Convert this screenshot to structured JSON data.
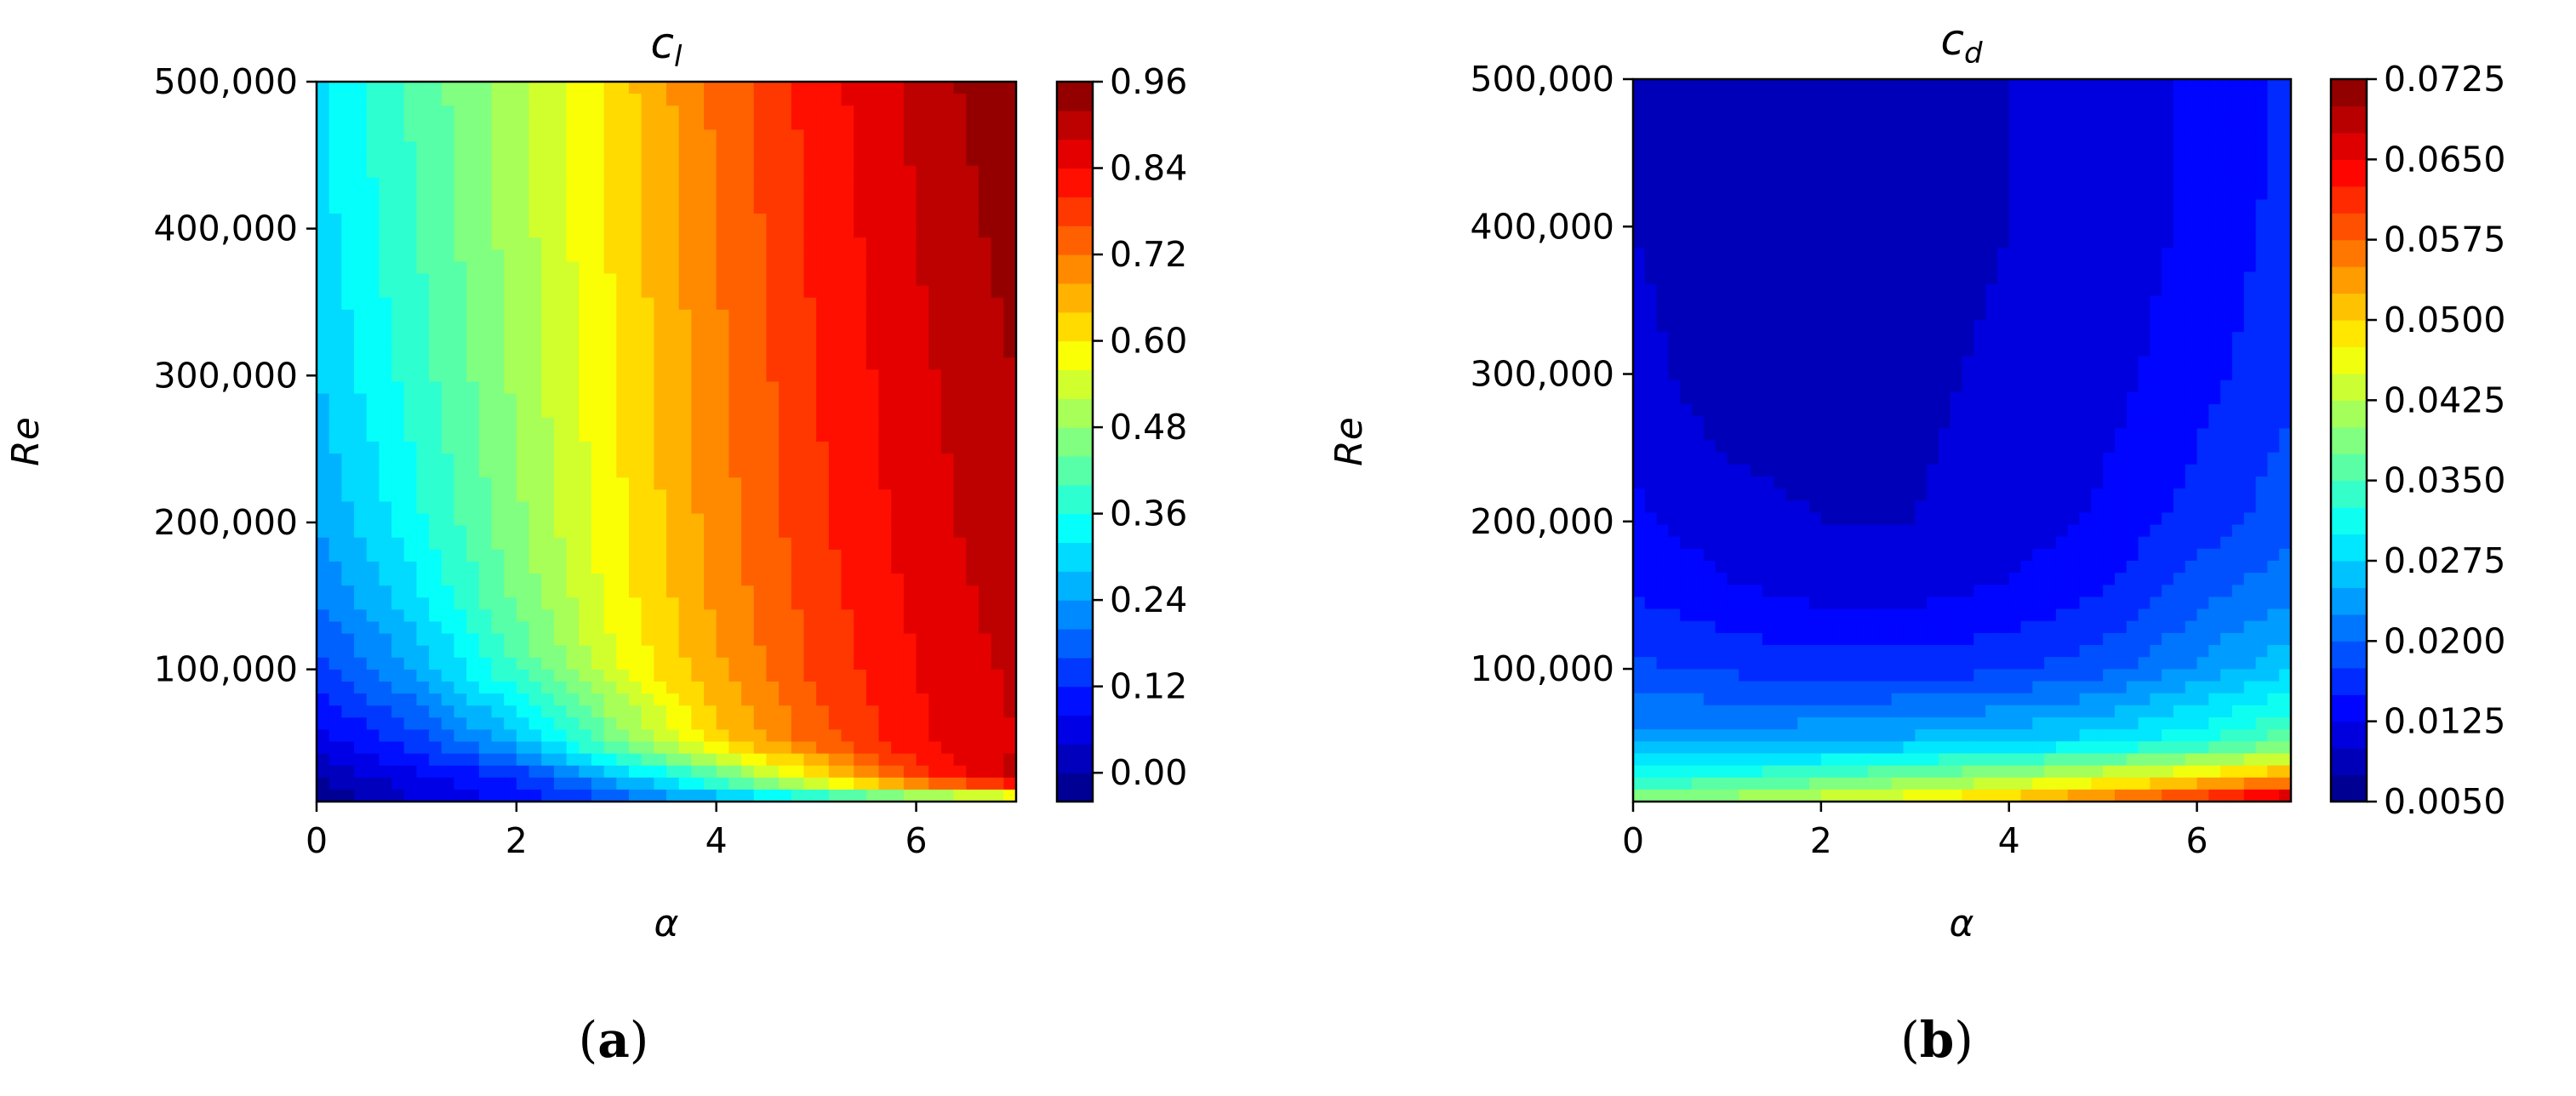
{
  "chart_data": [
    {
      "type": "heatmap",
      "panel_label": {
        "open": "(",
        "letter": "a",
        "close": ")"
      },
      "title": {
        "base": "c",
        "sub": "l"
      },
      "xlabel": "α",
      "ylabel": "Re",
      "xlim": [
        0,
        7
      ],
      "ylim": [
        10000,
        500000
      ],
      "x_ticks": [
        0,
        2,
        4,
        6
      ],
      "x_tick_labels": [
        "0",
        "2",
        "4",
        "6"
      ],
      "y_ticks": [
        100000,
        200000,
        300000,
        400000,
        500000
      ],
      "y_tick_labels": [
        "100,000",
        "200,000",
        "300,000",
        "400,000",
        "500,000"
      ],
      "colorbar": {
        "min": -0.04,
        "max": 0.96,
        "levels": 25,
        "ticks": [
          0.0,
          0.12,
          0.24,
          0.36,
          0.48,
          0.6,
          0.72,
          0.84,
          0.96
        ],
        "tick_labels": [
          "0.00",
          "0.12",
          "0.24",
          "0.36",
          "0.48",
          "0.60",
          "0.72",
          "0.84",
          "0.96"
        ],
        "colormap": "jet"
      },
      "x": [
        0,
        1,
        2,
        3,
        4,
        5,
        6,
        7
      ],
      "y": [
        10000,
        25000,
        50000,
        100000,
        150000,
        200000,
        300000,
        400000,
        500000
      ],
      "z": [
        [
          -0.03,
          0.04,
          0.09,
          0.16,
          0.24,
          0.31,
          0.38,
          0.44
        ],
        [
          0.0,
          0.06,
          0.12,
          0.25,
          0.4,
          0.58,
          0.78,
          0.9
        ],
        [
          0.06,
          0.14,
          0.26,
          0.44,
          0.62,
          0.74,
          0.83,
          0.88
        ],
        [
          0.14,
          0.25,
          0.4,
          0.56,
          0.67,
          0.77,
          0.84,
          0.89
        ],
        [
          0.2,
          0.31,
          0.45,
          0.58,
          0.69,
          0.78,
          0.85,
          0.9
        ],
        [
          0.24,
          0.35,
          0.47,
          0.59,
          0.7,
          0.79,
          0.86,
          0.91
        ],
        [
          0.28,
          0.38,
          0.49,
          0.6,
          0.71,
          0.8,
          0.87,
          0.92
        ],
        [
          0.3,
          0.4,
          0.5,
          0.61,
          0.72,
          0.81,
          0.88,
          0.94
        ],
        [
          0.31,
          0.41,
          0.51,
          0.62,
          0.73,
          0.82,
          0.89,
          0.96
        ]
      ]
    },
    {
      "type": "heatmap",
      "panel_label": {
        "open": "(",
        "letter": "b",
        "close": ")"
      },
      "title": {
        "base": "c",
        "sub": "d"
      },
      "xlabel": "α",
      "ylabel": "Re",
      "xlim": [
        0,
        7
      ],
      "ylim": [
        10000,
        500000
      ],
      "x_ticks": [
        0,
        2,
        4,
        6
      ],
      "x_tick_labels": [
        "0",
        "2",
        "4",
        "6"
      ],
      "y_ticks": [
        100000,
        200000,
        300000,
        400000,
        500000
      ],
      "y_tick_labels": [
        "100,000",
        "200,000",
        "300,000",
        "400,000",
        "500,000"
      ],
      "colorbar": {
        "min": 0.005,
        "max": 0.0725,
        "levels": 27,
        "ticks": [
          0.005,
          0.0125,
          0.02,
          0.0275,
          0.035,
          0.0425,
          0.05,
          0.0575,
          0.065,
          0.0725
        ],
        "tick_labels": [
          "0.0050",
          "0.0125",
          "0.0200",
          "0.0275",
          "0.0350",
          "0.0425",
          "0.0500",
          "0.0575",
          "0.0650",
          "0.0725"
        ],
        "colormap": "jet"
      },
      "x": [
        0,
        1,
        2,
        3,
        4,
        5,
        6,
        7
      ],
      "y": [
        10000,
        25000,
        50000,
        100000,
        150000,
        200000,
        300000,
        400000,
        500000
      ],
      "z": [
        [
          0.04,
          0.042,
          0.045,
          0.048,
          0.052,
          0.057,
          0.063,
          0.07
        ],
        [
          0.033,
          0.034,
          0.036,
          0.039,
          0.042,
          0.046,
          0.05,
          0.055
        ],
        [
          0.024,
          0.024,
          0.025,
          0.026,
          0.027,
          0.029,
          0.032,
          0.037
        ],
        [
          0.018,
          0.017,
          0.016,
          0.016,
          0.017,
          0.019,
          0.023,
          0.027
        ],
        [
          0.015,
          0.013,
          0.012,
          0.012,
          0.013,
          0.015,
          0.019,
          0.022
        ],
        [
          0.013,
          0.011,
          0.01,
          0.01,
          0.011,
          0.013,
          0.016,
          0.019
        ],
        [
          0.011,
          0.0085,
          0.0085,
          0.0095,
          0.0105,
          0.0115,
          0.014,
          0.017
        ],
        [
          0.01,
          0.008,
          0.008,
          0.009,
          0.01,
          0.011,
          0.013,
          0.016
        ],
        [
          0.0095,
          0.0075,
          0.008,
          0.009,
          0.01,
          0.011,
          0.013,
          0.0155
        ]
      ]
    }
  ]
}
